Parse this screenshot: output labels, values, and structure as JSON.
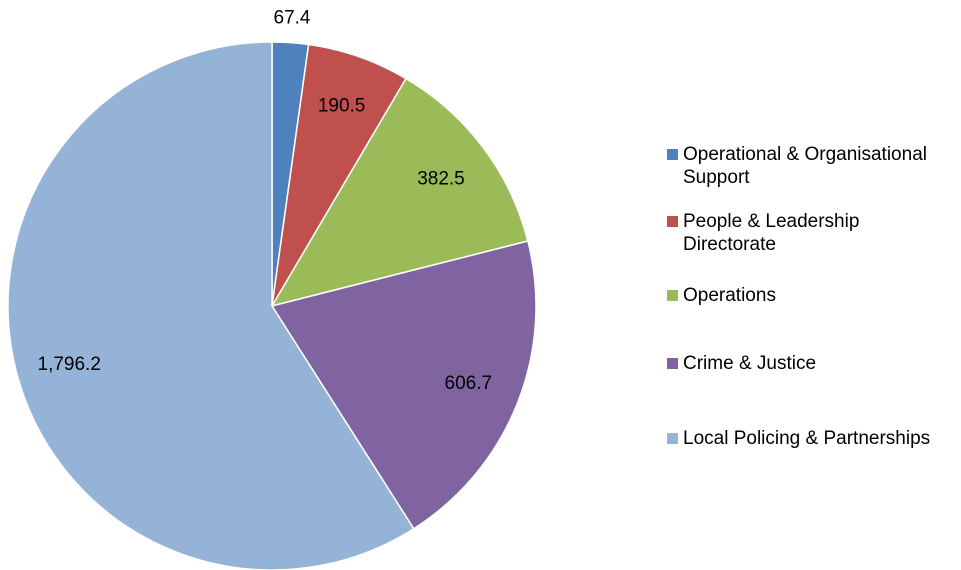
{
  "chart_data": {
    "type": "pie",
    "categories": [
      "Operational & Organisational Support",
      "People & Leadership Directorate",
      "Operations",
      "Crime & Justice",
      "Local Policing & Partnerships"
    ],
    "values": [
      67.4,
      190.5,
      382.5,
      606.7,
      1796.2
    ],
    "value_labels": [
      "67.4",
      "190.5",
      "382.5",
      "606.7",
      "1,796.2"
    ],
    "colors": [
      "#4f81bd",
      "#c0504d",
      "#9bbb59",
      "#8064a2",
      "#95b3d7"
    ],
    "legend": "right"
  }
}
